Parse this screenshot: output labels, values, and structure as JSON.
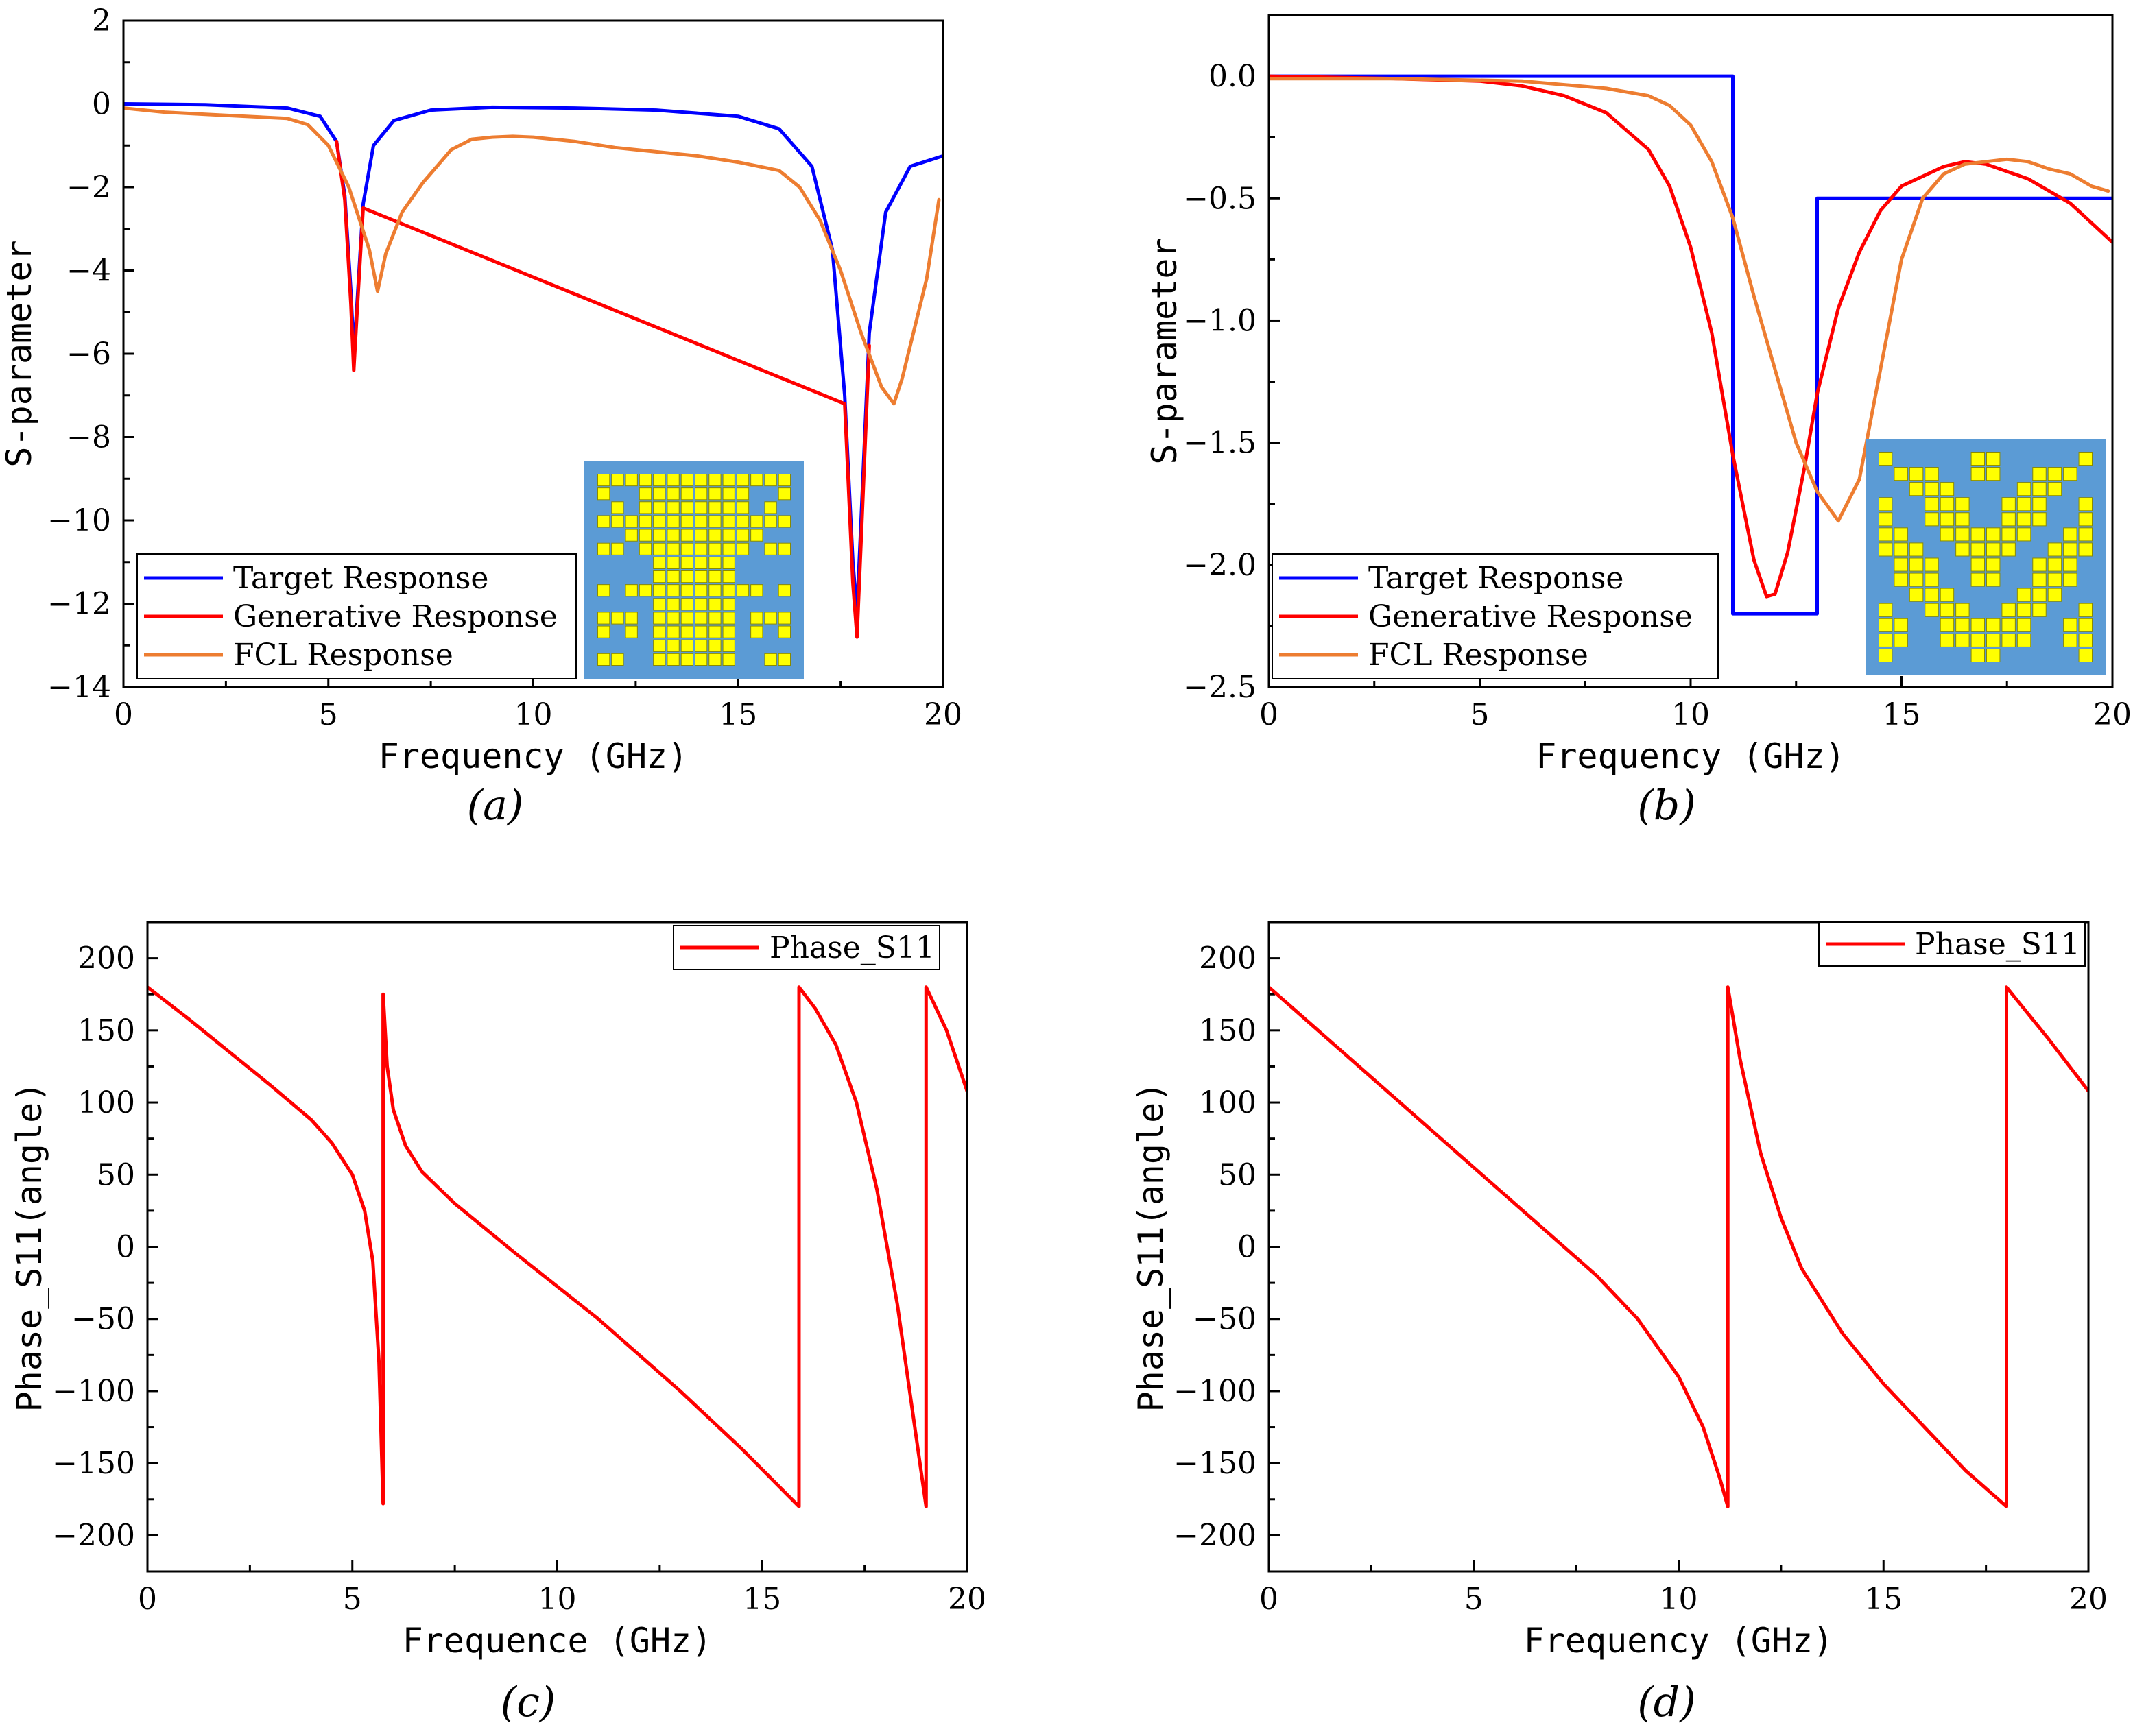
{
  "chart_data": [
    {
      "type": "line",
      "caption": "(a)",
      "title": "",
      "xlabel": "Frequency (GHz)",
      "ylabel": "S-parameter",
      "xlim": [
        0,
        20
      ],
      "ylim": [
        -14,
        2
      ],
      "xticks": [
        0,
        5,
        10,
        15,
        20
      ],
      "yticks": [
        -14,
        -12,
        -10,
        -8,
        -6,
        -4,
        -2,
        0,
        2
      ],
      "tick_decimals": 0,
      "legend_location": "lower-left",
      "has_inset": true,
      "series": [
        {
          "name": "Target Response",
          "color": "#0000ff",
          "x": [
            0,
            2,
            4,
            4.8,
            5.2,
            5.4,
            5.55,
            5.62,
            5.7,
            5.85,
            6.1,
            6.6,
            7.5,
            9,
            11,
            13,
            15,
            16,
            16.8,
            17.3,
            17.6,
            17.8,
            17.9,
            18.0,
            18.2,
            18.6,
            19.2,
            20
          ],
          "values": [
            0,
            -0.02,
            -0.1,
            -0.3,
            -0.9,
            -2.2,
            -4.5,
            -6.0,
            -4.8,
            -2.4,
            -1.0,
            -0.4,
            -0.15,
            -0.08,
            -0.1,
            -0.15,
            -0.3,
            -0.6,
            -1.5,
            -3.5,
            -7.0,
            -11.0,
            -12.2,
            -10.0,
            -5.5,
            -2.6,
            -1.5,
            -1.25
          ]
        },
        {
          "name": "Generative Response",
          "color": "#ff0000",
          "x": [
            5.2,
            5.4,
            5.55,
            5.62,
            5.7,
            5.85,
            17.6,
            17.8,
            17.9,
            18.0,
            18.2
          ],
          "values": [
            -0.9,
            -2.3,
            -4.8,
            -6.4,
            -5.0,
            -2.5,
            -7.2,
            -11.5,
            -12.8,
            -10.5,
            -5.8
          ]
        },
        {
          "name": "FCL Response",
          "color": "#ed7d31",
          "x": [
            0,
            1,
            2,
            3,
            4,
            4.5,
            5,
            5.5,
            6,
            6.2,
            6.4,
            6.8,
            7.3,
            8,
            8.5,
            9,
            9.5,
            10,
            11,
            12,
            13,
            14,
            15,
            16,
            16.5,
            17,
            17.5,
            18,
            18.5,
            18.8,
            19,
            19.3,
            19.6,
            19.9
          ],
          "values": [
            -0.1,
            -0.2,
            -0.25,
            -0.3,
            -0.35,
            -0.5,
            -1.0,
            -2.0,
            -3.5,
            -4.5,
            -3.6,
            -2.6,
            -1.9,
            -1.1,
            -0.85,
            -0.8,
            -0.78,
            -0.8,
            -0.9,
            -1.05,
            -1.15,
            -1.25,
            -1.4,
            -1.6,
            -2.0,
            -2.8,
            -4.0,
            -5.5,
            -6.8,
            -7.2,
            -6.6,
            -5.4,
            -4.2,
            -2.3
          ]
        }
      ]
    },
    {
      "type": "line",
      "caption": "(b)",
      "title": "",
      "xlabel": "Frequency (GHz)",
      "ylabel": "S-parameter",
      "xlim": [
        0,
        20
      ],
      "ylim": [
        -2.5,
        0.25
      ],
      "xticks": [
        0,
        5,
        10,
        15,
        20
      ],
      "yticks": [
        -2.5,
        -2.0,
        -1.5,
        -1.0,
        -0.5,
        0.0
      ],
      "tick_decimals": 1,
      "legend_location": "lower-left",
      "has_inset": true,
      "series": [
        {
          "name": "Target Response",
          "color": "#0000ff",
          "x": [
            0,
            11,
            11,
            13,
            13,
            20
          ],
          "values": [
            0,
            0,
            -2.2,
            -2.2,
            -0.5,
            -0.5
          ]
        },
        {
          "name": "Generative Response",
          "color": "#ff0000",
          "x": [
            0,
            3,
            5,
            6,
            7,
            8,
            9,
            9.5,
            10,
            10.5,
            11,
            11.5,
            11.8,
            12,
            12.3,
            12.7,
            13,
            13.5,
            14,
            14.5,
            15,
            16,
            16.5,
            17,
            18,
            19,
            20
          ],
          "values": [
            0,
            -0.01,
            -0.02,
            -0.04,
            -0.08,
            -0.15,
            -0.3,
            -0.45,
            -0.7,
            -1.05,
            -1.55,
            -1.98,
            -2.13,
            -2.12,
            -1.95,
            -1.6,
            -1.3,
            -0.95,
            -0.72,
            -0.55,
            -0.45,
            -0.37,
            -0.35,
            -0.36,
            -0.42,
            -0.52,
            -0.68
          ]
        },
        {
          "name": "FCL Response",
          "color": "#ed7d31",
          "x": [
            0,
            3,
            6,
            8,
            9,
            9.5,
            10,
            10.5,
            11,
            11.5,
            12,
            12.5,
            13,
            13.5,
            14,
            14.5,
            15,
            15.5,
            16,
            16.5,
            17,
            17.5,
            18,
            18.5,
            19,
            19.5,
            19.9
          ],
          "values": [
            -0.01,
            -0.01,
            -0.02,
            -0.05,
            -0.08,
            -0.12,
            -0.2,
            -0.35,
            -0.58,
            -0.9,
            -1.2,
            -1.5,
            -1.7,
            -1.82,
            -1.65,
            -1.2,
            -0.75,
            -0.5,
            -0.4,
            -0.36,
            -0.35,
            -0.34,
            -0.35,
            -0.38,
            -0.4,
            -0.45,
            -0.47
          ]
        }
      ]
    },
    {
      "type": "line",
      "caption": "(c)",
      "title": "",
      "xlabel": "Frequence (GHz)",
      "ylabel": "Phase_S11(angle)",
      "xlim": [
        0,
        20
      ],
      "ylim": [
        -225,
        225
      ],
      "xticks": [
        0,
        5,
        10,
        15,
        20
      ],
      "yticks": [
        -200,
        -150,
        -100,
        -50,
        0,
        50,
        100,
        150,
        200
      ],
      "tick_decimals": 0,
      "legend_location": "top-right",
      "has_inset": false,
      "series": [
        {
          "name": "Phase_S11",
          "color": "#ff0000",
          "x": [
            0,
            1,
            2,
            3,
            4,
            4.5,
            5,
            5.3,
            5.5,
            5.65,
            5.75,
            5.75,
            5.85,
            6,
            6.3,
            6.7,
            7.5,
            9,
            11,
            13,
            14.5,
            15.9,
            15.9,
            16.3,
            16.8,
            17.3,
            17.8,
            18.3,
            18.7,
            19.0,
            19.0,
            19.5,
            20
          ],
          "values": [
            180,
            158,
            135,
            112,
            88,
            72,
            50,
            25,
            -10,
            -80,
            -178,
            175,
            125,
            95,
            70,
            52,
            30,
            -5,
            -50,
            -100,
            -140,
            -180,
            180,
            165,
            140,
            100,
            40,
            -40,
            -120,
            -180,
            180,
            150,
            108
          ]
        }
      ]
    },
    {
      "type": "line",
      "caption": "(d)",
      "title": "",
      "xlabel": "Frequency (GHz)",
      "ylabel": "Phase_S11(angle)",
      "xlim": [
        0,
        20
      ],
      "ylim": [
        -225,
        225
      ],
      "xticks": [
        0,
        5,
        10,
        15,
        20
      ],
      "yticks": [
        -200,
        -150,
        -100,
        -50,
        0,
        50,
        100,
        150,
        200
      ],
      "tick_decimals": 0,
      "legend_location": "top-right",
      "has_inset": false,
      "series": [
        {
          "name": "Phase_S11",
          "color": "#ff0000",
          "x": [
            0,
            2,
            4,
            6,
            7,
            8,
            9,
            10,
            10.6,
            11,
            11.2,
            11.2,
            11.5,
            12,
            12.5,
            13,
            14,
            15,
            16,
            17,
            18,
            18,
            19,
            20
          ],
          "values": [
            180,
            130,
            80,
            30,
            5,
            -20,
            -50,
            -90,
            -125,
            -160,
            -180,
            180,
            130,
            65,
            20,
            -15,
            -60,
            -95,
            -125,
            -155,
            -180,
            180,
            145,
            108
          ]
        }
      ]
    }
  ]
}
